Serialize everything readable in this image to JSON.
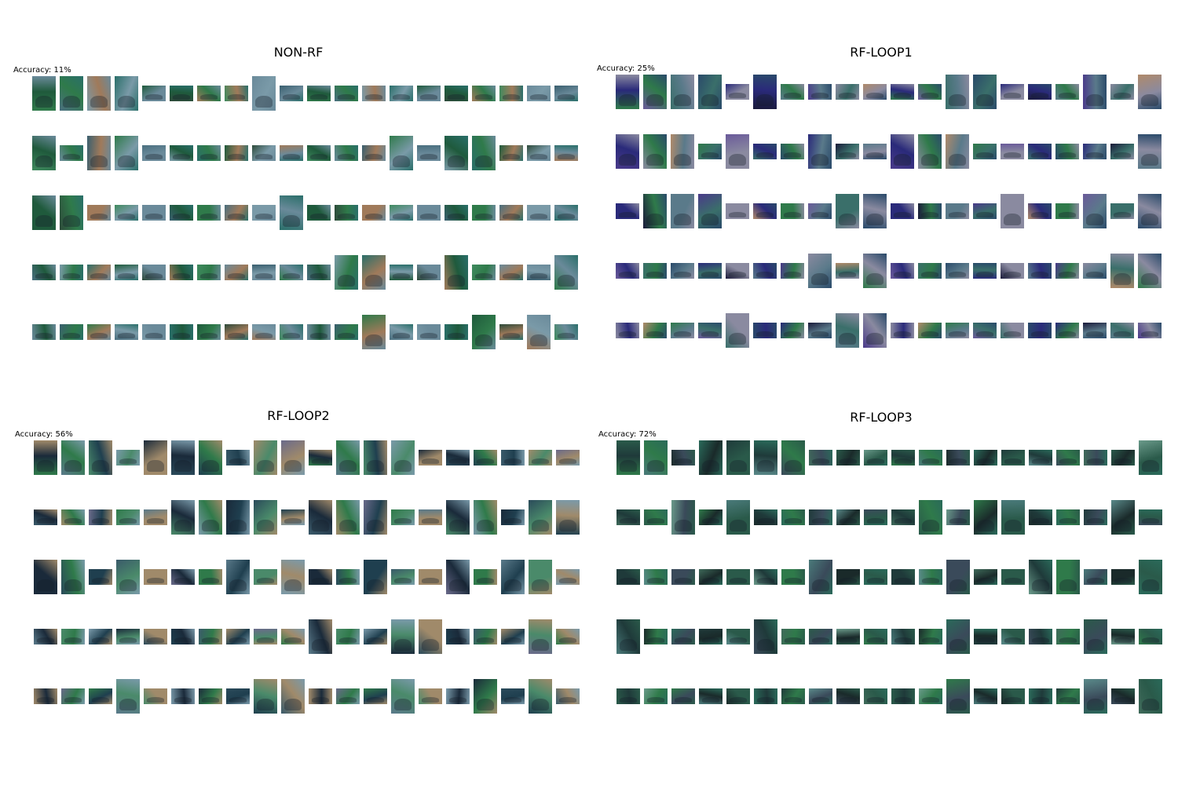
{
  "figure": {
    "panels": [
      {
        "title": "NON-RF",
        "accuracy": "Accuracy: 11%",
        "rows": [
          [
            "t",
            "t",
            "t",
            "t",
            "w",
            "w",
            "w",
            "w",
            "t",
            "w",
            "w",
            "w",
            "w",
            "w",
            "w",
            "w",
            "w",
            "w",
            "w",
            "w"
          ],
          [
            "t",
            "w",
            "t",
            "t",
            "w",
            "w",
            "w",
            "w",
            "w",
            "w",
            "w",
            "w",
            "w",
            "t",
            "w",
            "t",
            "t",
            "w",
            "w",
            "w"
          ],
          [
            "t",
            "t",
            "w",
            "w",
            "w",
            "w",
            "w",
            "w",
            "w",
            "t",
            "w",
            "w",
            "w",
            "w",
            "w",
            "w",
            "w",
            "w",
            "w",
            "w"
          ],
          [
            "w",
            "w",
            "w",
            "w",
            "w",
            "w",
            "w",
            "w",
            "w",
            "w",
            "w",
            "t",
            "t",
            "w",
            "w",
            "t",
            "w",
            "w",
            "w",
            "t"
          ],
          [
            "w",
            "w",
            "w",
            "w",
            "w",
            "w",
            "w",
            "w",
            "w",
            "w",
            "w",
            "w",
            "t",
            "w",
            "w",
            "w",
            "t",
            "w",
            "t",
            "w"
          ]
        ],
        "palettes": [
          [
            "#2f7a4a",
            "#3f8a5e",
            "#1f5a3c",
            "#4a6f7f",
            "#6a8a9a",
            "#2d4a3a",
            "#7a9aa8",
            "#3a5f6f",
            "#a07a5a",
            "#2a6f6a"
          ]
        ]
      },
      {
        "title": "RF-LOOP1",
        "accuracy": "Accuracy: 25%",
        "rows": [
          [
            "t",
            "t",
            "t",
            "t",
            "w",
            "t",
            "w",
            "w",
            "w",
            "w",
            "w",
            "w",
            "t",
            "t",
            "w",
            "w",
            "w",
            "t",
            "w",
            "t"
          ],
          [
            "t",
            "t",
            "t",
            "w",
            "t",
            "w",
            "w",
            "t",
            "w",
            "w",
            "t",
            "t",
            "t",
            "w",
            "w",
            "w",
            "w",
            "w",
            "w",
            "t"
          ],
          [
            "w",
            "t",
            "t",
            "t",
            "w",
            "w",
            "w",
            "w",
            "t",
            "t",
            "w",
            "w",
            "w",
            "w",
            "t",
            "w",
            "w",
            "t",
            "w",
            "t"
          ],
          [
            "w",
            "w",
            "w",
            "w",
            "w",
            "w",
            "w",
            "t",
            "w",
            "t",
            "w",
            "w",
            "w",
            "w",
            "w",
            "w",
            "w",
            "w",
            "t",
            "t"
          ],
          [
            "w",
            "w",
            "w",
            "w",
            "t",
            "w",
            "w",
            "w",
            "t",
            "t",
            "w",
            "w",
            "w",
            "w",
            "w",
            "w",
            "w",
            "w",
            "w",
            "w"
          ]
        ],
        "palettes": [
          [
            "#2f7a4a",
            "#4a3a8a",
            "#2a2a7a",
            "#6a5a9a",
            "#8a8aa0",
            "#1a1a3a",
            "#3a6f6a",
            "#b08a6a",
            "#5a7a8a",
            "#2a4a6a"
          ]
        ]
      },
      {
        "title": "RF-LOOP2",
        "accuracy": "Accuracy: 56%",
        "rows": [
          [
            "t",
            "t",
            "t",
            "w",
            "t",
            "t",
            "t",
            "w",
            "t",
            "t",
            "w",
            "t",
            "t",
            "t",
            "w",
            "w",
            "w",
            "w",
            "w",
            "w"
          ],
          [
            "w",
            "w",
            "w",
            "w",
            "w",
            "t",
            "t",
            "t",
            "t",
            "w",
            "t",
            "t",
            "t",
            "w",
            "w",
            "t",
            "t",
            "w",
            "t",
            "t"
          ],
          [
            "t",
            "t",
            "w",
            "t",
            "w",
            "w",
            "w",
            "t",
            "w",
            "t",
            "w",
            "w",
            "t",
            "w",
            "w",
            "t",
            "w",
            "t",
            "t",
            "w"
          ],
          [
            "w",
            "w",
            "w",
            "w",
            "w",
            "w",
            "w",
            "w",
            "w",
            "w",
            "t",
            "w",
            "w",
            "t",
            "t",
            "w",
            "w",
            "w",
            "t",
            "w"
          ],
          [
            "w",
            "w",
            "w",
            "t",
            "w",
            "w",
            "w",
            "w",
            "t",
            "t",
            "w",
            "w",
            "w",
            "t",
            "w",
            "w",
            "t",
            "w",
            "t",
            "w"
          ]
        ],
        "palettes": [
          [
            "#2f7a4a",
            "#3a5a6a",
            "#1a2a3a",
            "#5a7a8a",
            "#a08a6a",
            "#2a4a5a",
            "#4a8a6a",
            "#6a6a8a",
            "#1f3f4f",
            "#7a9aaa"
          ]
        ]
      },
      {
        "title": "RF-LOOP3",
        "accuracy": "Accuracy: 72%",
        "rows": [
          [
            "t",
            "t",
            "w",
            "t",
            "t",
            "t",
            "t",
            "w",
            "w",
            "w",
            "w",
            "w",
            "w",
            "w",
            "w",
            "w",
            "w",
            "w",
            "w",
            "t"
          ],
          [
            "w",
            "w",
            "t",
            "w",
            "t",
            "w",
            "w",
            "w",
            "w",
            "w",
            "w",
            "t",
            "w",
            "t",
            "t",
            "w",
            "w",
            "w",
            "t",
            "w"
          ],
          [
            "w",
            "w",
            "w",
            "w",
            "w",
            "w",
            "w",
            "t",
            "w",
            "w",
            "w",
            "w",
            "t",
            "w",
            "w",
            "t",
            "t",
            "w",
            "w",
            "t"
          ],
          [
            "t",
            "w",
            "w",
            "w",
            "w",
            "t",
            "w",
            "w",
            "w",
            "w",
            "w",
            "w",
            "t",
            "w",
            "w",
            "w",
            "w",
            "t",
            "w",
            "w"
          ],
          [
            "w",
            "w",
            "w",
            "w",
            "w",
            "w",
            "w",
            "w",
            "w",
            "w",
            "w",
            "w",
            "t",
            "w",
            "w",
            "w",
            "w",
            "t",
            "w",
            "t"
          ]
        ],
        "palettes": [
          [
            "#2f7a4a",
            "#3f6a5a",
            "#1f3a3a",
            "#4a7a7a",
            "#2a5a4a",
            "#5a8a8a",
            "#1a2a2a",
            "#6a9a8a",
            "#3a4a5a",
            "#2a6a5a"
          ]
        ]
      }
    ]
  }
}
